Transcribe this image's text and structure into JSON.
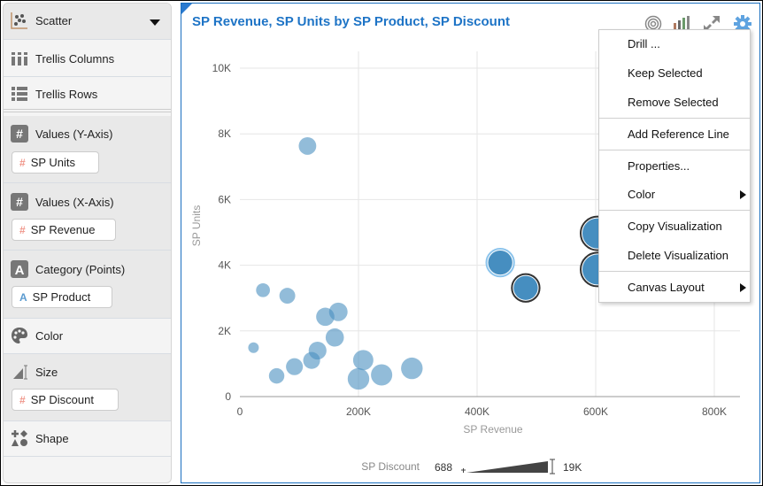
{
  "sidebar": {
    "viz_type": "Scatter",
    "trellis_columns": "Trellis Columns",
    "trellis_rows": "Trellis Rows",
    "y_axis": {
      "label": "Values (Y-Axis)",
      "field": "SP Units"
    },
    "x_axis": {
      "label": "Values (X-Axis)",
      "field": "SP Revenue"
    },
    "category": {
      "label": "Category (Points)",
      "field": "SP Product"
    },
    "color": {
      "label": "Color"
    },
    "size": {
      "label": "Size",
      "field": "SP Discount"
    },
    "shape": {
      "label": "Shape"
    }
  },
  "viz": {
    "title": "SP Revenue, SP Units by SP Product, SP Discount",
    "accent": "#1e74c6"
  },
  "menu": {
    "items": [
      "Drill ...",
      "Keep Selected",
      "Remove Selected",
      "Add Reference Line",
      "Properties...",
      "Color",
      "Copy Visualization",
      "Delete Visualization",
      "Canvas Layout"
    ]
  },
  "chart_data": {
    "type": "scatter",
    "xlabel": "SP Revenue",
    "ylabel": "SP Units",
    "xlim": [
      0,
      800000
    ],
    "ylim": [
      0,
      10000
    ],
    "xticks": [
      "0",
      "200K",
      "400K",
      "600K",
      "800K"
    ],
    "yticks": [
      "0",
      "2K",
      "4K",
      "6K",
      "8K",
      "10K"
    ],
    "xtick_values": [
      0,
      200000,
      400000,
      600000,
      800000
    ],
    "ytick_values": [
      0,
      2000,
      4000,
      6000,
      8000,
      10000
    ],
    "size_legend": {
      "label": "SP Discount",
      "min_label": "688",
      "max_label": "19K",
      "min": 688,
      "max": 19000
    },
    "color": "#4a8fc0",
    "points": [
      {
        "x": 114000,
        "y": 7630,
        "size": 3000
      },
      {
        "x": 39000,
        "y": 3240,
        "size": 1200
      },
      {
        "x": 80000,
        "y": 3070,
        "size": 2000
      },
      {
        "x": 23000,
        "y": 1490,
        "size": 688
      },
      {
        "x": 62000,
        "y": 630,
        "size": 1800
      },
      {
        "x": 92000,
        "y": 910,
        "size": 2600
      },
      {
        "x": 121000,
        "y": 1100,
        "size": 2600
      },
      {
        "x": 131000,
        "y": 1400,
        "size": 3200
      },
      {
        "x": 144000,
        "y": 2430,
        "size": 3500
      },
      {
        "x": 166000,
        "y": 2580,
        "size": 3700
      },
      {
        "x": 160000,
        "y": 1800,
        "size": 3500
      },
      {
        "x": 208000,
        "y": 1110,
        "size": 5200
      },
      {
        "x": 200000,
        "y": 540,
        "size": 6500
      },
      {
        "x": 239000,
        "y": 660,
        "size": 6200
      },
      {
        "x": 290000,
        "y": 860,
        "size": 6500
      },
      {
        "x": 439000,
        "y": 4080,
        "size": 9500,
        "state": "hover"
      },
      {
        "x": 482000,
        "y": 3310,
        "size": 9500,
        "state": "selected"
      },
      {
        "x": 603000,
        "y": 4970,
        "size": 19000,
        "state": "selected"
      },
      {
        "x": 603000,
        "y": 3870,
        "size": 19000,
        "state": "selected"
      }
    ]
  }
}
